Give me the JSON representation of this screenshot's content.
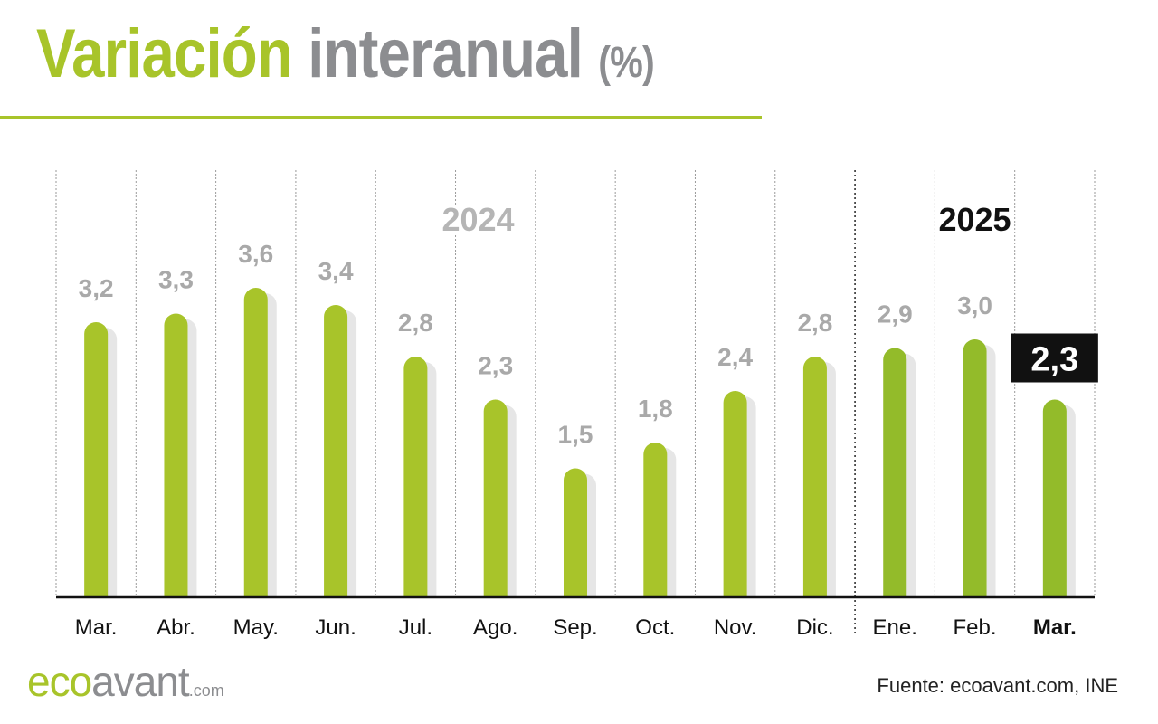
{
  "header": {
    "title_part1": "Variación",
    "title_part2": "interanual",
    "title_part3": "(%)"
  },
  "footer": {
    "logo_eco": "eco",
    "logo_avant": "avant",
    "logo_com": ".com",
    "source": "Fuente: ecoavant.com, INE"
  },
  "colors": {
    "accent": "#a8c42a",
    "accent_2025": "#93bb2a",
    "gray_text": "#a9a9a9",
    "shadow": "#e6e6e6",
    "highlight_box": "#111111"
  },
  "chart_data": {
    "type": "bar",
    "categories": [
      "Mar.",
      "Abr.",
      "May.",
      "Jun.",
      "Jul.",
      "Ago.",
      "Sep.",
      "Oct.",
      "Nov.",
      "Dic.",
      "Ene.",
      "Feb.",
      "Mar."
    ],
    "values": [
      3.2,
      3.3,
      3.6,
      3.4,
      2.8,
      2.3,
      1.5,
      1.8,
      2.4,
      2.8,
      2.9,
      3.0,
      2.3
    ],
    "value_labels": [
      "3,2",
      "3,3",
      "3,6",
      "3,4",
      "2,8",
      "2,3",
      "1,5",
      "1,8",
      "2,4",
      "2,8",
      "2,9",
      "3,0",
      "2,3"
    ],
    "year_groups": [
      {
        "label": "2024",
        "start_index": 0,
        "end_index": 9
      },
      {
        "label": "2025",
        "start_index": 10,
        "end_index": 12
      }
    ],
    "highlight_index": 12,
    "ylim": [
      0,
      4
    ],
    "grid": "vertical-dotted",
    "xlabel": "",
    "ylabel": ""
  }
}
